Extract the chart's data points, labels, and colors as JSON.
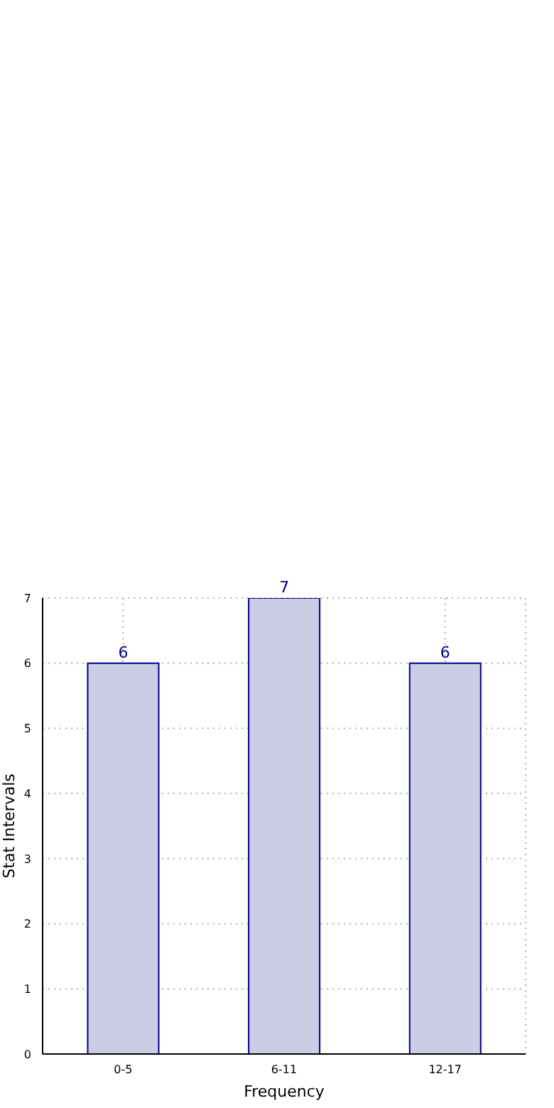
{
  "chart_data": {
    "type": "bar",
    "xlabel": "Frequency",
    "ylabel": "Stat Intervals",
    "categories": [
      "0-5",
      "6-11",
      "12-17"
    ],
    "series": [
      {
        "color": "#ccccE5",
        "values": [
          6,
          7,
          6
        ]
      }
    ],
    "ylim": [
      0,
      7
    ],
    "yticks": [
      0,
      1,
      2,
      3,
      4,
      5,
      6,
      7
    ],
    "grid": true,
    "data_labels": true
  }
}
